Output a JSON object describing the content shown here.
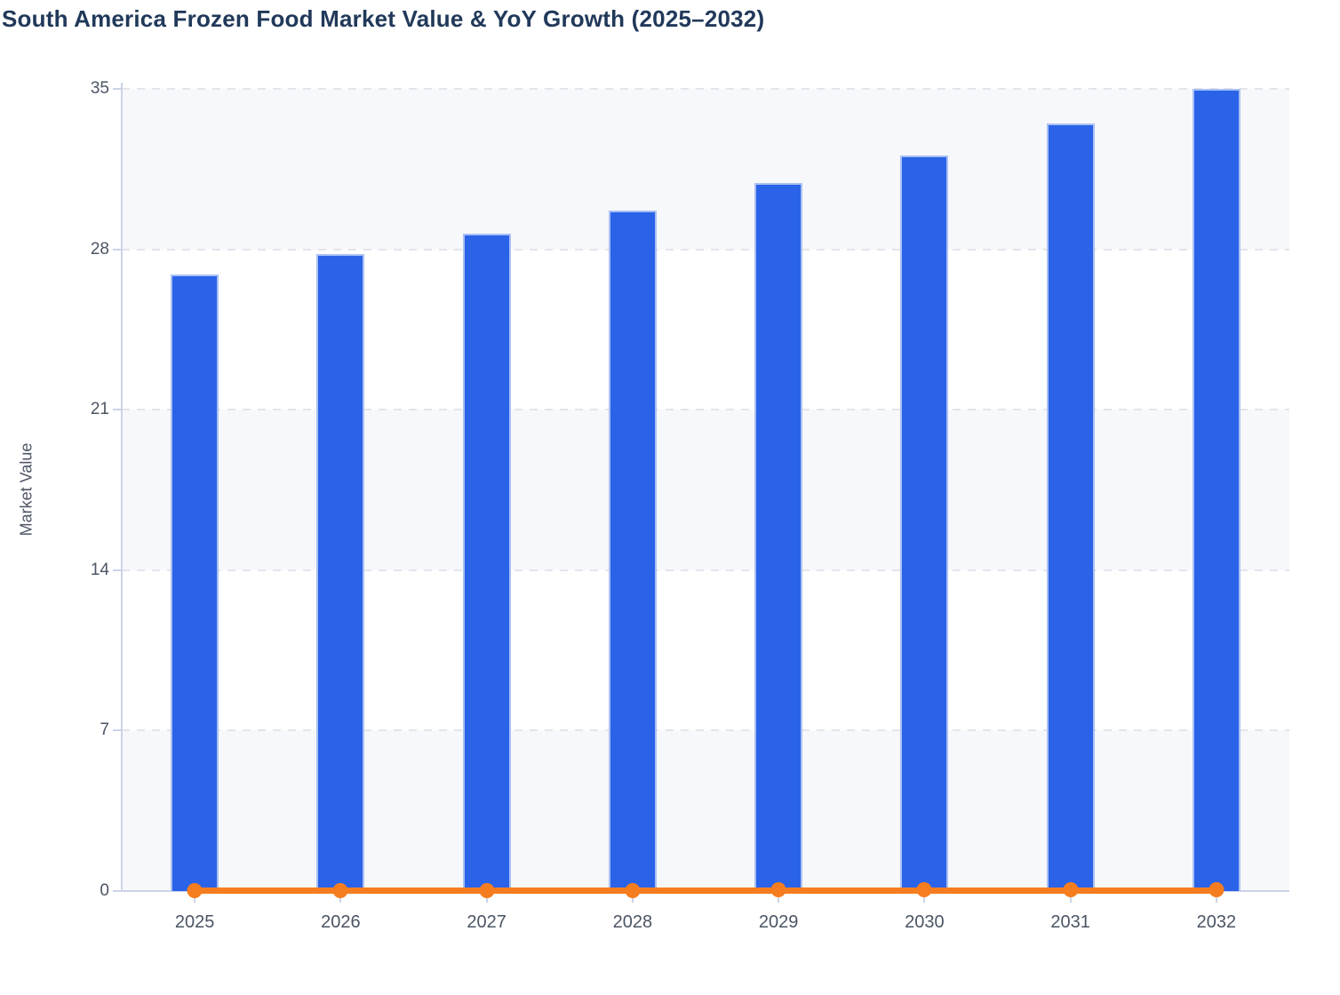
{
  "title": "South America Frozen Food Market Value & YoY Growth (2025–2032)",
  "y_axis_label": "Market Value",
  "chart_data": {
    "type": "bar",
    "title": "South America Frozen Food Market Value & YoY Growth (2025–2032)",
    "xlabel": "",
    "ylabel": "Market Value",
    "ylim": [
      0,
      35
    ],
    "y_ticks": [
      0,
      7,
      14,
      21,
      28,
      35
    ],
    "categories": [
      "2025",
      "2026",
      "2027",
      "2028",
      "2029",
      "2030",
      "2031",
      "2032"
    ],
    "series": [
      {
        "name": "Market Value",
        "type": "bar",
        "color": "#2a63e8",
        "values": [
          26.9,
          27.8,
          28.7,
          29.7,
          30.9,
          32.1,
          33.5,
          35.0
        ]
      },
      {
        "name": "YoY Growth",
        "type": "line",
        "color": "#f67d1f",
        "values": [
          0.03,
          0.033,
          0.032,
          0.035,
          0.04,
          0.039,
          0.044,
          0.045
        ],
        "axis_note": "fractional growth values; the line renders at ~0 on the shared 0–35 axis"
      }
    ],
    "grid": "horizontal dashed",
    "legend_position": "none",
    "plot_bands_alternating": true
  },
  "colors": {
    "bar_fill": "#2a63e8",
    "bar_border": "#a9c0f3",
    "line": "#f67d1f",
    "axis": "#ccd3ea",
    "gridline": "#e3e5ea",
    "band_fill": "#f7f8fb",
    "title_text": "#21395a",
    "tick_text": "#4b5564",
    "background": "#ffffff"
  }
}
